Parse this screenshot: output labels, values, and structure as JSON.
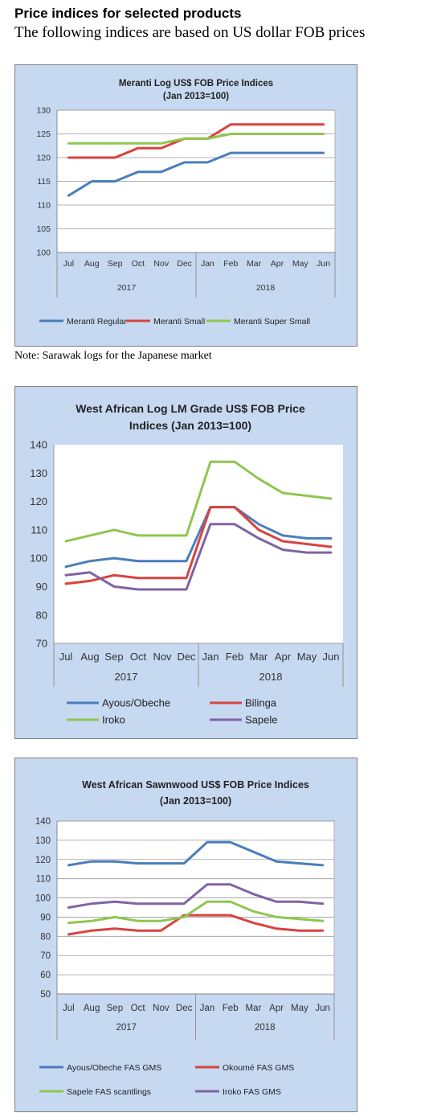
{
  "page": {
    "heading": "Price indices for selected products",
    "subheading": "The following indices are based on US dollar FOB prices",
    "note": "Note: Sarawak logs for the Japanese market"
  },
  "chart_data": [
    {
      "type": "line",
      "title": "Meranti Log US$ FOB Price Indices",
      "subtitle": "(Jan 2013=100)",
      "categories": [
        "Jul",
        "Aug",
        "Sep",
        "Oct",
        "Nov",
        "Dec",
        "Jan",
        "Feb",
        "Mar",
        "Apr",
        "May",
        "Jun"
      ],
      "groups": [
        {
          "label": "2017",
          "count": 6
        },
        {
          "label": "2018",
          "count": 6
        }
      ],
      "ylim": [
        100,
        130
      ],
      "yticks": [
        100,
        105,
        110,
        115,
        120,
        125,
        130
      ],
      "grid": true,
      "legend": "bottom",
      "series": [
        {
          "name": "Meranti Regular",
          "color": "#4a7ebb",
          "values": [
            112,
            115,
            115,
            117,
            117,
            119,
            119,
            121,
            121,
            121,
            121,
            121
          ]
        },
        {
          "name": "Meranti Small",
          "color": "#d9433f",
          "values": [
            120,
            120,
            120,
            122,
            122,
            124,
            124,
            127,
            127,
            127,
            127,
            127
          ]
        },
        {
          "name": "Meranti Super Small",
          "color": "#8fc650",
          "values": [
            123,
            123,
            123,
            123,
            123,
            124,
            124,
            125,
            125,
            125,
            125,
            125
          ]
        }
      ]
    },
    {
      "type": "line",
      "title": "West African Log LM Grade US$ FOB Price",
      "subtitle": "Indices (Jan 2013=100)",
      "categories": [
        "Jul",
        "Aug",
        "Sep",
        "Oct",
        "Nov",
        "Dec",
        "Jan",
        "Feb",
        "Mar",
        "Apr",
        "May",
        "Jun"
      ],
      "groups": [
        {
          "label": "2017",
          "count": 6
        },
        {
          "label": "2018",
          "count": 6
        }
      ],
      "ylim": [
        70,
        140
      ],
      "yticks": [
        70,
        80,
        90,
        100,
        110,
        120,
        130,
        140
      ],
      "grid": false,
      "legend": "bottom",
      "series": [
        {
          "name": "Ayous/Obeche",
          "color": "#4a7ebb",
          "values": [
            97,
            99,
            100,
            99,
            99,
            99,
            118,
            118,
            112,
            108,
            107,
            107
          ]
        },
        {
          "name": "Bilinga",
          "color": "#d9433f",
          "values": [
            91,
            92,
            94,
            93,
            93,
            93,
            118,
            118,
            110,
            106,
            105,
            104
          ]
        },
        {
          "name": "Iroko",
          "color": "#8fc650",
          "values": [
            106,
            108,
            110,
            108,
            108,
            108,
            134,
            134,
            128,
            123,
            122,
            121
          ]
        },
        {
          "name": "Sapele",
          "color": "#8064a2",
          "values": [
            94,
            95,
            90,
            89,
            89,
            89,
            112,
            112,
            107,
            103,
            102,
            102
          ]
        }
      ]
    },
    {
      "type": "line",
      "title": "West African Sawnwood US$ FOB Price Indices",
      "subtitle": "(Jan 2013=100)",
      "categories": [
        "Jul",
        "Aug",
        "Sep",
        "Oct",
        "Nov",
        "Dec",
        "Jan",
        "Feb",
        "Mar",
        "Apr",
        "May",
        "Jun"
      ],
      "groups": [
        {
          "label": "2017",
          "count": 6
        },
        {
          "label": "2018",
          "count": 6
        }
      ],
      "ylim": [
        50,
        140
      ],
      "yticks": [
        50,
        60,
        70,
        80,
        90,
        100,
        110,
        120,
        130,
        140
      ],
      "grid": true,
      "legend": "bottom",
      "series": [
        {
          "name": "Ayous/Obeche FAS GMS",
          "color": "#4a7ebb",
          "values": [
            117,
            119,
            119,
            118,
            118,
            118,
            129,
            129,
            124,
            119,
            118,
            117
          ]
        },
        {
          "name": "Okoumé FAS GMS",
          "color": "#d9433f",
          "values": [
            81,
            83,
            84,
            83,
            83,
            91,
            91,
            91,
            87,
            84,
            83,
            83
          ]
        },
        {
          "name": "Sapele FAS scantlings",
          "color": "#8fc650",
          "values": [
            87,
            88,
            90,
            88,
            88,
            90,
            98,
            98,
            93,
            90,
            89,
            88
          ]
        },
        {
          "name": "Iroko FAS GMS",
          "color": "#8064a2",
          "values": [
            95,
            97,
            98,
            97,
            97,
            97,
            107,
            107,
            102,
            98,
            98,
            97
          ]
        }
      ]
    }
  ]
}
